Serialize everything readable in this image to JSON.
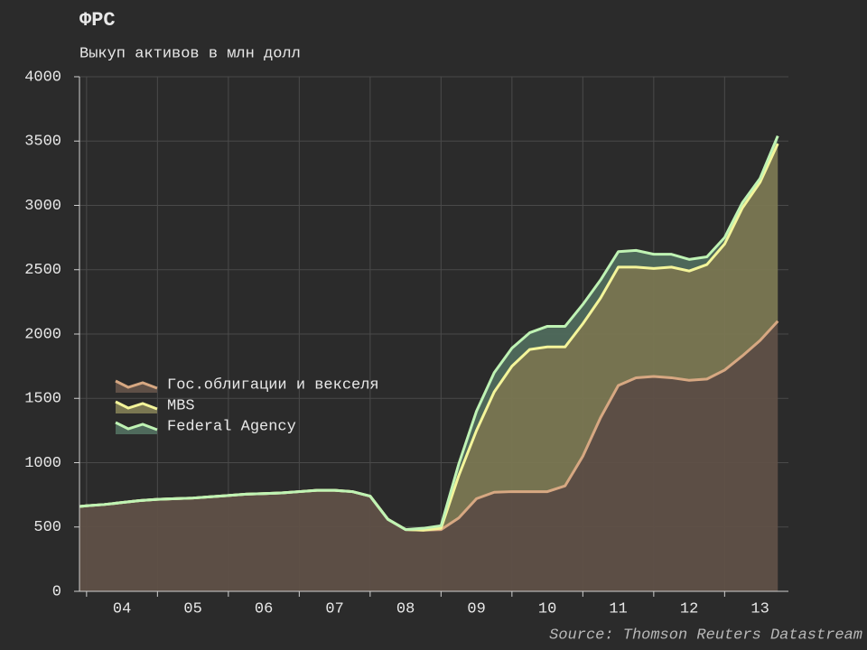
{
  "chart_data": {
    "type": "stacked-area",
    "title": "ФРС",
    "subtitle": "Выкуп активов в млн долл",
    "source": "Source: Thomson Reuters Datastream",
    "x": [
      2003.9,
      2004,
      2004.25,
      2004.5,
      2004.75,
      2005,
      2005.25,
      2005.5,
      2005.75,
      2006,
      2006.25,
      2006.5,
      2006.75,
      2007,
      2007.25,
      2007.5,
      2007.75,
      2008,
      2008.25,
      2008.5,
      2008.75,
      2009,
      2009.25,
      2009.5,
      2009.75,
      2010,
      2010.25,
      2010.5,
      2010.75,
      2011,
      2011.25,
      2011.5,
      2011.75,
      2012,
      2012.25,
      2012.5,
      2012.75,
      2013,
      2013.25,
      2013.5,
      2013.75
    ],
    "series": [
      {
        "name": "Гос.облигации и векселя",
        "color": "#d7a882",
        "fill": "#5f5047",
        "values": [
          660,
          665,
          675,
          690,
          705,
          715,
          720,
          725,
          735,
          745,
          755,
          760,
          765,
          775,
          785,
          785,
          775,
          740,
          560,
          480,
          475,
          480,
          570,
          720,
          770,
          775,
          775,
          775,
          820,
          1050,
          1350,
          1600,
          1660,
          1670,
          1660,
          1640,
          1650,
          1720,
          1830,
          1950,
          2100
        ]
      },
      {
        "name": "MBS",
        "color": "#f4f59a",
        "fill": "#7a7752",
        "values": [
          0,
          0,
          0,
          0,
          0,
          0,
          0,
          0,
          0,
          0,
          0,
          0,
          0,
          0,
          0,
          0,
          0,
          0,
          0,
          0,
          0,
          10,
          330,
          530,
          780,
          975,
          1105,
          1125,
          1080,
          1030,
          930,
          920,
          860,
          840,
          860,
          850,
          890,
          980,
          1150,
          1230,
          1380
        ]
      },
      {
        "name": "Federal Agency",
        "color": "#bff3b4",
        "fill": "#4f6a5c",
        "values": [
          0,
          0,
          0,
          0,
          0,
          0,
          0,
          0,
          0,
          0,
          0,
          0,
          0,
          0,
          0,
          0,
          0,
          0,
          0,
          0,
          15,
          20,
          90,
          150,
          150,
          140,
          130,
          160,
          160,
          150,
          140,
          120,
          130,
          110,
          100,
          90,
          60,
          50,
          40,
          30,
          60
        ]
      }
    ],
    "xlim": [
      2003.9,
      2013.9
    ],
    "xticks": [
      {
        "value": 2004.5,
        "label": "04"
      },
      {
        "value": 2005.5,
        "label": "05"
      },
      {
        "value": 2006.5,
        "label": "06"
      },
      {
        "value": 2007.5,
        "label": "07"
      },
      {
        "value": 2008.5,
        "label": "08"
      },
      {
        "value": 2009.5,
        "label": "09"
      },
      {
        "value": 2010.5,
        "label": "10"
      },
      {
        "value": 2011.5,
        "label": "11"
      },
      {
        "value": 2012.5,
        "label": "12"
      },
      {
        "value": 2013.5,
        "label": "13"
      }
    ],
    "xgridlines": [
      2004,
      2005,
      2006,
      2007,
      2008,
      2009,
      2010,
      2011,
      2012,
      2013
    ],
    "ylim": [
      0,
      4000
    ],
    "yticks": [
      0,
      500,
      1000,
      1500,
      2000,
      2500,
      3000,
      3500,
      4000
    ],
    "grid": true,
    "legend": "left"
  }
}
